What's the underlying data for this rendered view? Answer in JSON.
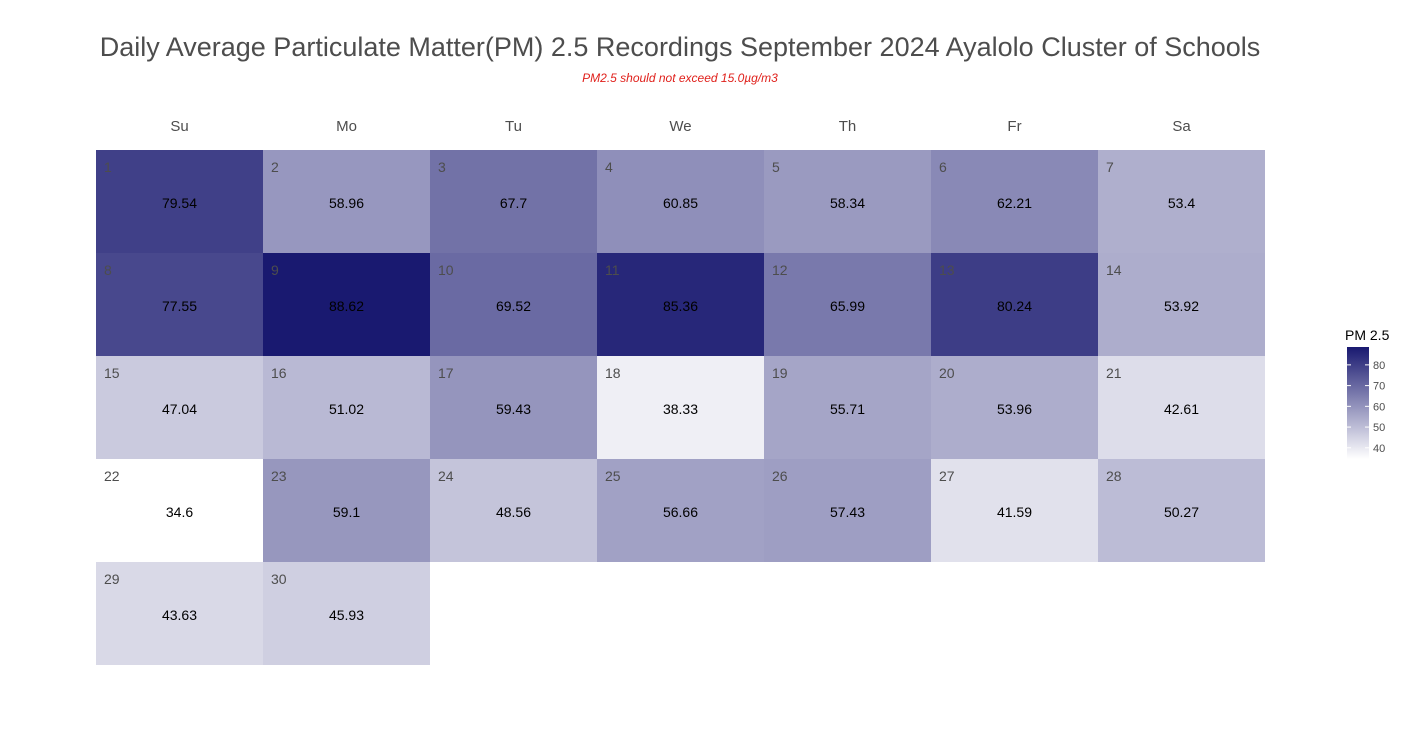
{
  "chart_data": {
    "type": "heatmap",
    "title": "Daily Average Particulate Matter(PM) 2.5 Recordings September 2024 Ayalolo Cluster of Schools",
    "subtitle": "PM2.5 should not exceed 15.0µg/m3",
    "weekdays": [
      "Su",
      "Mo",
      "Tu",
      "We",
      "Th",
      "Fr",
      "Sa"
    ],
    "month_start_weekday": 0,
    "days": [
      1,
      2,
      3,
      4,
      5,
      6,
      7,
      8,
      9,
      10,
      11,
      12,
      13,
      14,
      15,
      16,
      17,
      18,
      19,
      20,
      21,
      22,
      23,
      24,
      25,
      26,
      27,
      28,
      29,
      30
    ],
    "values": [
      79.54,
      58.96,
      67.7,
      60.85,
      58.34,
      62.21,
      53.4,
      77.55,
      88.62,
      69.52,
      85.36,
      65.99,
      80.24,
      53.92,
      47.04,
      51.02,
      59.43,
      38.33,
      55.71,
      53.96,
      42.61,
      34.6,
      59.1,
      48.56,
      56.66,
      57.43,
      41.59,
      50.27,
      43.63,
      45.93
    ],
    "labels": [
      "79.54",
      "58.96",
      "67.7",
      "60.85",
      "58.34",
      "62.21",
      "53.4",
      "77.55",
      "88.62",
      "69.52",
      "85.36",
      "65.99",
      "80.24",
      "53.92",
      "47.04",
      "51.02",
      "59.43",
      "38.33",
      "55.71",
      "53.96",
      "42.61",
      "34.6",
      "59.1",
      "48.56",
      "56.66",
      "57.43",
      "41.59",
      "50.27",
      "43.63",
      "45.93"
    ],
    "legend": {
      "title": "PM 2.5",
      "ticks": [
        40,
        50,
        60,
        70,
        80
      ],
      "range": [
        34.6,
        88.62
      ],
      "low_color": "#ffffff",
      "high_color": "#191970",
      "placement": "right"
    }
  }
}
